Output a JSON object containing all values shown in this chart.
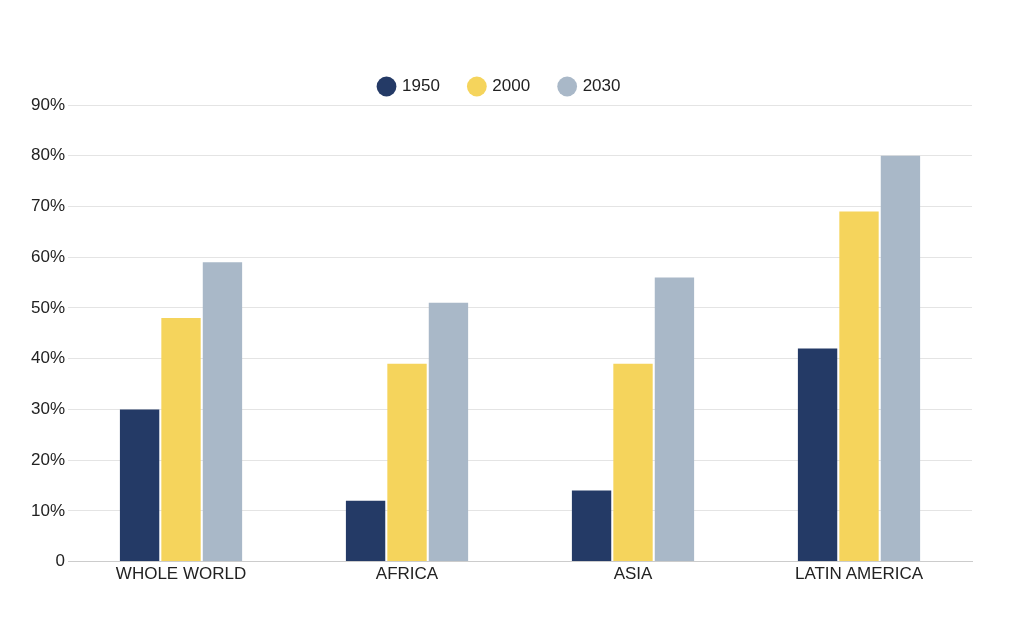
{
  "chart_data": {
    "type": "bar",
    "categories": [
      "WHOLE WORLD",
      "AFRICA",
      "ASIA",
      "LATIN AMERICA"
    ],
    "series": [
      {
        "name": "1950",
        "color": "#243a66",
        "values": [
          30,
          12,
          14,
          42
        ]
      },
      {
        "name": "2000",
        "color": "#f5d45c",
        "values": [
          48,
          39,
          39,
          69
        ]
      },
      {
        "name": "2030",
        "color": "#a9b8c8",
        "values": [
          59,
          51,
          56,
          80
        ]
      }
    ],
    "ylim": [
      0,
      90
    ],
    "yticks": [
      {
        "value": 0,
        "label": "0"
      },
      {
        "value": 10,
        "label": "10%"
      },
      {
        "value": 20,
        "label": "20%"
      },
      {
        "value": 30,
        "label": "30%"
      },
      {
        "value": 40,
        "label": "40%"
      },
      {
        "value": 50,
        "label": "50%"
      },
      {
        "value": 60,
        "label": "60%"
      },
      {
        "value": 70,
        "label": "70%"
      },
      {
        "value": 80,
        "label": "80%"
      },
      {
        "value": 90,
        "label": "90%"
      }
    ],
    "grid": "y",
    "legend": "top"
  }
}
